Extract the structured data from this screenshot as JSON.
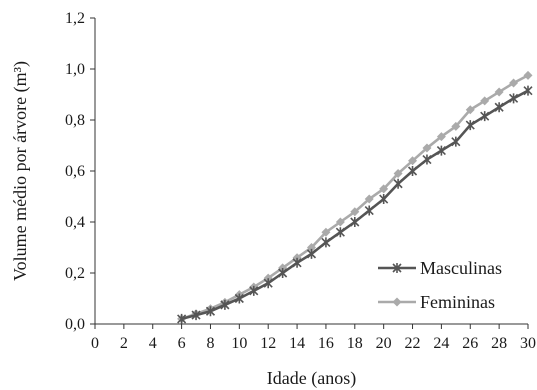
{
  "chart_data": {
    "type": "line",
    "xlabel": "Idade (anos)",
    "ylabel": "Volume médio por árvore (m³)",
    "xlim": [
      0,
      30
    ],
    "ylim": [
      0,
      1.2
    ],
    "x_ticks": [
      "0",
      "2",
      "4",
      "6",
      "8",
      "10",
      "12",
      "14",
      "16",
      "18",
      "20",
      "22",
      "24",
      "26",
      "28",
      "30"
    ],
    "y_ticks": [
      "0,0",
      "0,2",
      "0,4",
      "0,6",
      "0,8",
      "1,0",
      "1,2"
    ],
    "x": [
      6,
      7,
      8,
      9,
      10,
      11,
      12,
      13,
      14,
      15,
      16,
      17,
      18,
      19,
      20,
      21,
      22,
      23,
      24,
      25,
      26,
      27,
      28,
      29,
      30
    ],
    "series": [
      {
        "name": "Masculinas",
        "color": "#555555",
        "marker": "star",
        "values": [
          0.02,
          0.035,
          0.05,
          0.075,
          0.1,
          0.13,
          0.16,
          0.2,
          0.24,
          0.275,
          0.32,
          0.36,
          0.4,
          0.445,
          0.49,
          0.55,
          0.6,
          0.645,
          0.68,
          0.715,
          0.78,
          0.815,
          0.85,
          0.885,
          0.915
        ]
      },
      {
        "name": "Femininas",
        "color": "#aaaaaa",
        "marker": "diamond",
        "values": [
          0.02,
          0.04,
          0.06,
          0.085,
          0.115,
          0.145,
          0.18,
          0.22,
          0.26,
          0.3,
          0.36,
          0.4,
          0.44,
          0.49,
          0.53,
          0.59,
          0.64,
          0.69,
          0.735,
          0.775,
          0.84,
          0.875,
          0.91,
          0.945,
          0.975
        ]
      }
    ],
    "legend_position": "bottom-right",
    "grid": false
  }
}
